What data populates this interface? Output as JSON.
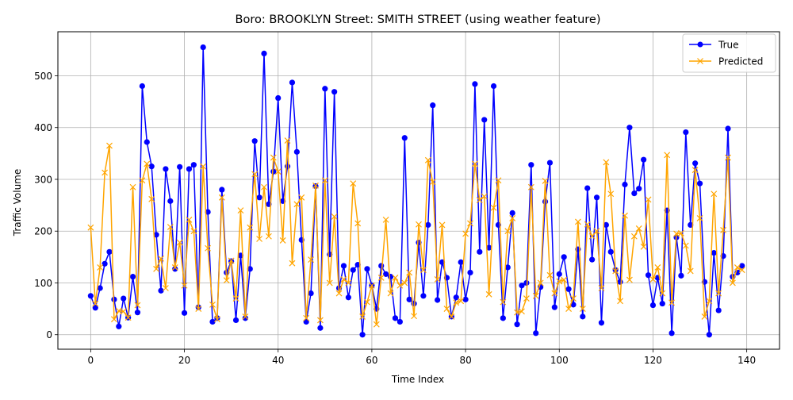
{
  "chart_data": {
    "type": "line",
    "title": "Boro: BROOKLYN Street: SMITH STREET (using weather feature)",
    "xlabel": "Time Index",
    "ylabel": "Traffic Volume",
    "xlim": [
      -7,
      147
    ],
    "ylim": [
      -28,
      585
    ],
    "xticks": [
      0,
      20,
      40,
      60,
      80,
      100,
      120,
      140
    ],
    "yticks": [
      0,
      100,
      200,
      300,
      400,
      500
    ],
    "grid": true,
    "legend_position": "upper right",
    "x": [
      0,
      1,
      2,
      3,
      4,
      5,
      6,
      7,
      8,
      9,
      10,
      11,
      12,
      13,
      14,
      15,
      16,
      17,
      18,
      19,
      20,
      21,
      22,
      23,
      24,
      25,
      26,
      27,
      28,
      29,
      30,
      31,
      32,
      33,
      34,
      35,
      36,
      37,
      38,
      39,
      40,
      41,
      42,
      43,
      44,
      45,
      46,
      47,
      48,
      49,
      50,
      51,
      52,
      53,
      54,
      55,
      56,
      57,
      58,
      59,
      60,
      61,
      62,
      63,
      64,
      65,
      66,
      67,
      68,
      69,
      70,
      71,
      72,
      73,
      74,
      75,
      76,
      77,
      78,
      79,
      80,
      81,
      82,
      83,
      84,
      85,
      86,
      87,
      88,
      89,
      90,
      91,
      92,
      93,
      94,
      95,
      96,
      97,
      98,
      99,
      100,
      101,
      102,
      103,
      104,
      105,
      106,
      107,
      108,
      109,
      110,
      111,
      112,
      113,
      114,
      115,
      116,
      117,
      118,
      119,
      120,
      121,
      122,
      123,
      124,
      125,
      126,
      127,
      128,
      129,
      130,
      131,
      132,
      133,
      134,
      135,
      136,
      137,
      138,
      139
    ],
    "series": [
      {
        "name": "True",
        "color": "#0000ff",
        "marker": "circle",
        "values": [
          75,
          52,
          90,
          137,
          160,
          68,
          16,
          70,
          33,
          112,
          43,
          480,
          372,
          325,
          193,
          85,
          320,
          258,
          127,
          324,
          42,
          320,
          328,
          53,
          555,
          237,
          25,
          32,
          280,
          120,
          142,
          28,
          153,
          32,
          127,
          374,
          265,
          543,
          252,
          315,
          457,
          258,
          325,
          487,
          353,
          183,
          25,
          80,
          287,
          13,
          475,
          155,
          469,
          90,
          133,
          72,
          125,
          135,
          0,
          127,
          95,
          50,
          133,
          117,
          112,
          32,
          25,
          380,
          68,
          60,
          178,
          75,
          212,
          443,
          67,
          140,
          110,
          35,
          72,
          140,
          68,
          120,
          484,
          160,
          415,
          168,
          480,
          212,
          32,
          130,
          235,
          20,
          95,
          100,
          328,
          3,
          92,
          257,
          332,
          53,
          117,
          150,
          88,
          58,
          165,
          35,
          283,
          145,
          265,
          23,
          212,
          160,
          125,
          102,
          290,
          400,
          273,
          282,
          338,
          115,
          57,
          110,
          60,
          240,
          3,
          188,
          114,
          391,
          212,
          331,
          292,
          102,
          0,
          158,
          47,
          152,
          398,
          112,
          120,
          133
        ]
      },
      {
        "name": "Predicted",
        "color": "#ffa500",
        "marker": "x",
        "values": [
          207,
          60,
          130,
          313,
          365,
          30,
          46,
          45,
          33,
          285,
          57,
          298,
          330,
          262,
          127,
          147,
          90,
          208,
          130,
          178,
          95,
          222,
          200,
          50,
          325,
          167,
          58,
          30,
          265,
          105,
          143,
          70,
          240,
          35,
          207,
          310,
          185,
          285,
          190,
          342,
          315,
          182,
          375,
          138,
          252,
          265,
          32,
          145,
          288,
          28,
          298,
          100,
          228,
          80,
          107,
          100,
          292,
          215,
          35,
          63,
          95,
          20,
          110,
          222,
          80,
          110,
          95,
          100,
          120,
          36,
          213,
          125,
          337,
          295,
          107,
          212,
          50,
          35,
          62,
          65,
          195,
          215,
          330,
          260,
          267,
          78,
          245,
          298,
          63,
          200,
          225,
          43,
          45,
          70,
          285,
          75,
          100,
          297,
          115,
          80,
          103,
          106,
          50,
          70,
          218,
          50,
          213,
          190,
          200,
          90,
          333,
          272,
          123,
          65,
          230,
          106,
          190,
          205,
          170,
          261,
          107,
          130,
          80,
          347,
          62,
          195,
          196,
          172,
          123,
          318,
          225,
          35,
          65,
          272,
          80,
          202,
          342,
          100,
          130,
          125
        ]
      }
    ]
  }
}
